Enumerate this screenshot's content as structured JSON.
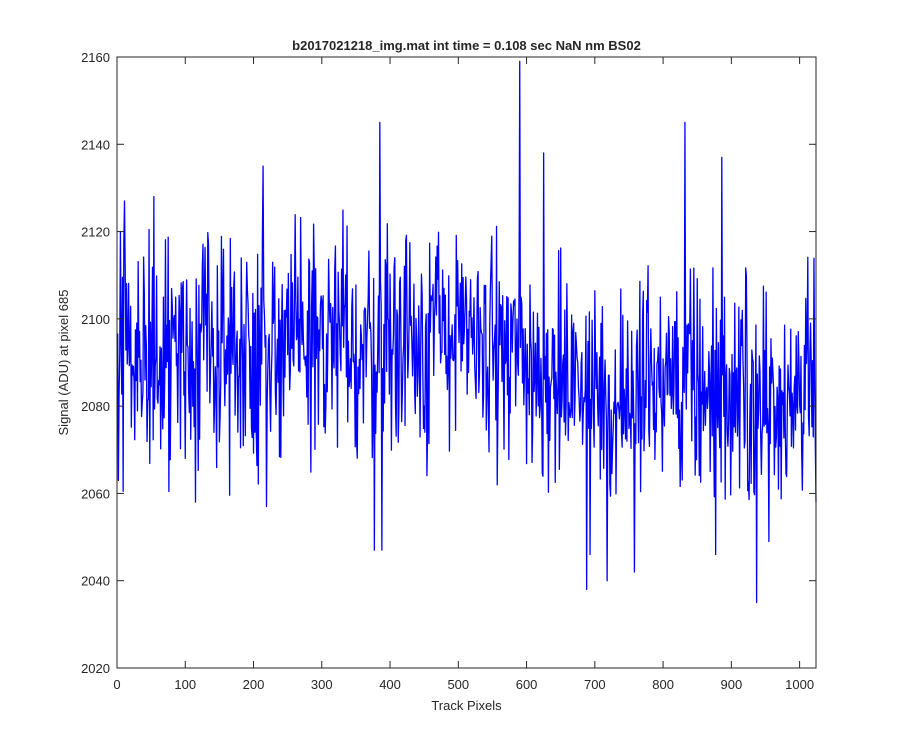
{
  "colors": {
    "background": "#ffffff",
    "axes": "#262626",
    "series": "#0000ff"
  },
  "chart_data": {
    "type": "line",
    "title": "b2017021218_img.mat int time = 0.108 sec  NaN nm BS02",
    "xlabel": "Track Pixels",
    "ylabel": "Signal (ADU) at pixel 685",
    "xlim": [
      0,
      1024
    ],
    "ylim": [
      2020,
      2160
    ],
    "xticks": [
      0,
      100,
      200,
      300,
      400,
      500,
      600,
      700,
      800,
      900,
      1000
    ],
    "yticks": [
      2020,
      2040,
      2060,
      2080,
      2100,
      2120,
      2140,
      2160
    ],
    "xtick_labels": [
      "0",
      "100",
      "200",
      "300",
      "400",
      "500",
      "600",
      "700",
      "800",
      "900",
      "1000"
    ],
    "ytick_labels": [
      "2020",
      "2040",
      "2060",
      "2080",
      "2100",
      "2120",
      "2140",
      "2160"
    ],
    "grid": false,
    "legend": "none",
    "series": [
      {
        "color": "#0000ff",
        "x_range": [
          1,
          1024
        ],
        "num_points": 1024,
        "mean_trend": [
          [
            0,
            2093
          ],
          [
            100,
            2092
          ],
          [
            200,
            2094
          ],
          [
            300,
            2094
          ],
          [
            400,
            2097
          ],
          [
            500,
            2096
          ],
          [
            600,
            2090
          ],
          [
            650,
            2087
          ],
          [
            700,
            2083
          ],
          [
            800,
            2085
          ],
          [
            900,
            2083
          ],
          [
            1024,
            2083
          ]
        ],
        "typical_range": [
          2060,
          2127
        ],
        "notable_points": [
          [
            2,
            2063
          ],
          [
            5,
            2120
          ],
          [
            11,
            2127
          ],
          [
            54,
            2128
          ],
          [
            115,
            2058
          ],
          [
            214,
            2135
          ],
          [
            219,
            2057
          ],
          [
            377,
            2047
          ],
          [
            385,
            2145
          ],
          [
            388,
            2047
          ],
          [
            590,
            2159
          ],
          [
            625,
            2138
          ],
          [
            688,
            2038
          ],
          [
            693,
            2046
          ],
          [
            718,
            2040
          ],
          [
            758,
            2042
          ],
          [
            832,
            2145
          ],
          [
            877,
            2046
          ],
          [
            886,
            2137
          ],
          [
            937,
            2035
          ],
          [
            955,
            2049
          ],
          [
            1024,
            2058
          ]
        ]
      }
    ]
  }
}
